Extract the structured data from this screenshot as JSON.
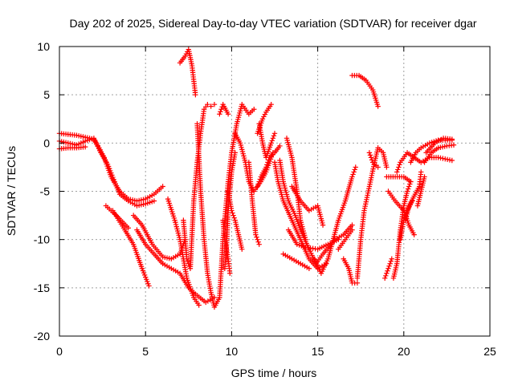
{
  "chart_data": {
    "type": "scatter",
    "title": "Day 202 of 2025, Sidereal Day-to-day VTEC variation (SDTVAR) for receiver dgar",
    "xlabel": "GPS time / hours",
    "ylabel": "SDTVAR / TECUs",
    "xlim": [
      0,
      25
    ],
    "ylim": [
      -20,
      10
    ],
    "xticks": [
      "0",
      "5",
      "10",
      "15",
      "20",
      "25"
    ],
    "yticks": [
      "10",
      "5",
      "0",
      "-5",
      "-10",
      "-15",
      "-20"
    ],
    "grid": true,
    "marker": "+",
    "color": "#ff0000",
    "series": [
      {
        "name": "track-1",
        "points": [
          [
            0,
            1
          ],
          [
            0.5,
            0.9
          ],
          [
            1,
            0.8
          ],
          [
            1.5,
            0.6
          ],
          [
            2,
            0.4
          ],
          [
            2.3,
            -0.5
          ],
          [
            2.6,
            -1.5
          ],
          [
            3,
            -3.5
          ],
          [
            3.5,
            -5
          ],
          [
            4,
            -5.8
          ],
          [
            4.5,
            -6
          ],
          [
            5,
            -5.8
          ],
          [
            5.5,
            -5.3
          ],
          [
            6,
            -4.5
          ]
        ]
      },
      {
        "name": "track-2",
        "points": [
          [
            0,
            0.2
          ],
          [
            0.5,
            0
          ],
          [
            1,
            -0.2
          ],
          [
            1.5,
            0.2
          ],
          [
            2,
            0.5
          ],
          [
            2.4,
            -1
          ],
          [
            2.8,
            -2.2
          ],
          [
            3.2,
            -4
          ],
          [
            3.5,
            -5.3
          ],
          [
            4,
            -6
          ],
          [
            4.5,
            -6.5
          ],
          [
            5,
            -6.3
          ],
          [
            5.5,
            -6
          ]
        ]
      },
      {
        "name": "track-3",
        "points": [
          [
            0,
            -0.6
          ],
          [
            0.5,
            -0.5
          ],
          [
            1,
            -0.5
          ],
          [
            1.5,
            -0.4
          ]
        ]
      },
      {
        "name": "track-4",
        "points": [
          [
            2.7,
            -6.5
          ],
          [
            3.3,
            -7.5
          ],
          [
            4,
            -8.8
          ]
        ]
      },
      {
        "name": "track-5",
        "points": [
          [
            3.1,
            -7
          ],
          [
            3.8,
            -9
          ],
          [
            4.3,
            -10.5
          ],
          [
            4.8,
            -13
          ],
          [
            5.2,
            -14.8
          ]
        ]
      },
      {
        "name": "track-6",
        "points": [
          [
            4.3,
            -7.5
          ],
          [
            4.8,
            -8.5
          ],
          [
            5.4,
            -10.5
          ],
          [
            6,
            -11.8
          ],
          [
            6.5,
            -12
          ],
          [
            7,
            -11.5
          ],
          [
            7.3,
            -10
          ]
        ]
      },
      {
        "name": "track-7",
        "points": [
          [
            4.5,
            -9
          ],
          [
            5,
            -10.5
          ],
          [
            5.5,
            -11.5
          ],
          [
            6,
            -12.5
          ],
          [
            6.5,
            -13
          ],
          [
            7,
            -13.5
          ],
          [
            7.5,
            -15
          ],
          [
            8,
            -15.8
          ],
          [
            8.5,
            -16.5
          ],
          [
            9,
            -16
          ]
        ]
      },
      {
        "name": "track-8",
        "points": [
          [
            6.3,
            -5.8
          ],
          [
            6.7,
            -8
          ],
          [
            7,
            -10
          ],
          [
            7.4,
            -14
          ],
          [
            7.8,
            -16
          ],
          [
            8.1,
            -16.8
          ]
        ]
      },
      {
        "name": "track-9",
        "points": [
          [
            7,
            8.3
          ],
          [
            7.3,
            9
          ],
          [
            7.5,
            9.7
          ],
          [
            7.7,
            8
          ],
          [
            7.9,
            5
          ]
        ]
      },
      {
        "name": "track-10",
        "points": [
          [
            7.2,
            -8
          ],
          [
            7.4,
            -12
          ],
          [
            7.6,
            -13
          ],
          [
            7.8,
            -6
          ],
          [
            8,
            -2
          ],
          [
            8.2,
            1
          ],
          [
            8.4,
            3.5
          ],
          [
            8.6,
            4
          ],
          [
            8.8,
            3.8
          ],
          [
            9,
            4
          ]
        ]
      },
      {
        "name": "track-11",
        "points": [
          [
            8,
            2
          ],
          [
            8.2,
            -5
          ],
          [
            8.4,
            -10
          ],
          [
            8.6,
            -13.5
          ],
          [
            8.8,
            -15.5
          ],
          [
            9,
            -17
          ],
          [
            9.3,
            -16
          ],
          [
            9.5,
            -10
          ],
          [
            9.8,
            -4
          ],
          [
            10,
            -1
          ],
          [
            10.3,
            2
          ],
          [
            10.6,
            4
          ],
          [
            11,
            3
          ],
          [
            11.3,
            3.5
          ]
        ]
      },
      {
        "name": "track-12",
        "points": [
          [
            9.3,
            3
          ],
          [
            9.5,
            4
          ],
          [
            9.8,
            3
          ]
        ]
      },
      {
        "name": "track-13",
        "points": [
          [
            9.6,
            -13
          ],
          [
            9.7,
            -11
          ],
          [
            9.8,
            -7
          ],
          [
            10,
            -3
          ],
          [
            10.2,
            -1
          ]
        ]
      },
      {
        "name": "track-14",
        "points": [
          [
            9.8,
            -5
          ],
          [
            10,
            -7
          ],
          [
            10.2,
            -8
          ],
          [
            10.4,
            -9.5
          ],
          [
            10.6,
            -11
          ]
        ]
      },
      {
        "name": "track-15",
        "points": [
          [
            9.5,
            -8
          ],
          [
            9.6,
            -10
          ],
          [
            9.8,
            -12
          ],
          [
            9.9,
            -13.5
          ]
        ]
      },
      {
        "name": "track-16",
        "points": [
          [
            10.2,
            1
          ],
          [
            10.5,
            0
          ],
          [
            10.8,
            -2
          ],
          [
            11,
            -4
          ],
          [
            11.3,
            -5
          ],
          [
            11.7,
            -4
          ],
          [
            12,
            -3
          ],
          [
            12.4,
            -1
          ]
        ]
      },
      {
        "name": "track-17",
        "points": [
          [
            11,
            -2
          ],
          [
            11.2,
            -6
          ],
          [
            11.4,
            -9.5
          ],
          [
            11.6,
            -10.5
          ]
        ]
      },
      {
        "name": "track-18",
        "points": [
          [
            11.5,
            1
          ],
          [
            11.8,
            2.5
          ],
          [
            12,
            3.2
          ],
          [
            12.3,
            4
          ]
        ]
      },
      {
        "name": "track-19",
        "points": [
          [
            11.5,
            -4.5
          ],
          [
            11.7,
            -3.5
          ],
          [
            12,
            -2.5
          ],
          [
            12.2,
            -1.5
          ],
          [
            12.5,
            -1
          ],
          [
            12.8,
            -0.3
          ]
        ]
      },
      {
        "name": "track-20",
        "points": [
          [
            11.6,
            2
          ],
          [
            11.8,
            0
          ],
          [
            12,
            -1.5
          ],
          [
            12.3,
            0
          ],
          [
            12.5,
            1
          ]
        ]
      },
      {
        "name": "track-21",
        "points": [
          [
            12.5,
            -2
          ],
          [
            12.7,
            -4
          ],
          [
            13,
            -6
          ],
          [
            13.5,
            -8
          ],
          [
            14,
            -10
          ],
          [
            14.5,
            -12
          ],
          [
            15,
            -13
          ],
          [
            15.5,
            -12.5
          ]
        ]
      },
      {
        "name": "track-22",
        "points": [
          [
            12.8,
            -1.8
          ],
          [
            13,
            -4
          ],
          [
            13.3,
            -6
          ],
          [
            13.7,
            -7.5
          ],
          [
            14,
            -9
          ],
          [
            14.5,
            -11
          ],
          [
            14.9,
            -12.5
          ],
          [
            15.3,
            -11.5
          ],
          [
            16,
            -10
          ],
          [
            16.5,
            -9.5
          ],
          [
            17,
            -8.5
          ]
        ]
      },
      {
        "name": "track-23",
        "points": [
          [
            13.2,
            0.5
          ],
          [
            13.5,
            -1.5
          ],
          [
            13.8,
            -5
          ],
          [
            14,
            -8
          ],
          [
            14.3,
            -10
          ]
        ]
      },
      {
        "name": "track-24",
        "points": [
          [
            13,
            -11.5
          ],
          [
            13.5,
            -12
          ],
          [
            14,
            -12.5
          ],
          [
            14.5,
            -13
          ]
        ]
      },
      {
        "name": "track-25",
        "points": [
          [
            13.5,
            -4.5
          ],
          [
            14,
            -6
          ],
          [
            14.5,
            -7
          ],
          [
            15,
            -6.5
          ],
          [
            15.3,
            -8.5
          ]
        ]
      },
      {
        "name": "track-26",
        "points": [
          [
            13.3,
            -9
          ],
          [
            13.8,
            -10.5
          ],
          [
            14.3,
            -10.8
          ],
          [
            15,
            -11
          ],
          [
            15.6,
            -10.5
          ],
          [
            16.2,
            -10
          ]
        ]
      },
      {
        "name": "track-27",
        "points": [
          [
            14.8,
            -12
          ],
          [
            15.2,
            -13.5
          ],
          [
            15.6,
            -12
          ],
          [
            16.2,
            -8
          ],
          [
            16.6,
            -6
          ],
          [
            17,
            -3.5
          ],
          [
            17.2,
            -2.5
          ]
        ]
      },
      {
        "name": "track-28",
        "points": [
          [
            16.2,
            -11
          ],
          [
            16.6,
            -10
          ],
          [
            17,
            -9
          ]
        ]
      },
      {
        "name": "track-29",
        "points": [
          [
            16.5,
            -12
          ],
          [
            16.8,
            -13
          ],
          [
            17,
            -14.5
          ],
          [
            17.3,
            -14.5
          ]
        ]
      },
      {
        "name": "track-30",
        "points": [
          [
            17.3,
            -14
          ],
          [
            17.5,
            -10
          ],
          [
            17.7,
            -7
          ],
          [
            18,
            -4.5
          ],
          [
            18.3,
            -2
          ],
          [
            18.5,
            -0.5
          ],
          [
            18.8,
            -1
          ],
          [
            19,
            -2.5
          ]
        ]
      },
      {
        "name": "track-31",
        "points": [
          [
            17,
            7
          ],
          [
            17.4,
            7
          ],
          [
            17.8,
            6.5
          ],
          [
            18.2,
            5.5
          ],
          [
            18.5,
            3.8
          ]
        ]
      },
      {
        "name": "track-32",
        "points": [
          [
            18,
            -1
          ],
          [
            18.2,
            -2
          ],
          [
            18.5,
            -2.5
          ]
        ]
      },
      {
        "name": "track-33",
        "points": [
          [
            18.9,
            -14
          ],
          [
            19.1,
            -13
          ],
          [
            19.3,
            -12
          ]
        ]
      },
      {
        "name": "track-34",
        "points": [
          [
            19.4,
            -14
          ],
          [
            19.6,
            -12.5
          ],
          [
            19.8,
            -9
          ],
          [
            20,
            -6.5
          ],
          [
            20.2,
            -5
          ],
          [
            20.4,
            -4
          ]
        ]
      },
      {
        "name": "track-35",
        "points": [
          [
            19.6,
            -3
          ],
          [
            19.8,
            -2
          ],
          [
            20.2,
            -1
          ],
          [
            20.6,
            -1.5
          ],
          [
            21,
            -2
          ],
          [
            21.5,
            -1.5
          ],
          [
            22,
            -1.5
          ],
          [
            22.8,
            -1.8
          ]
        ]
      },
      {
        "name": "track-36",
        "points": [
          [
            19.1,
            -5
          ],
          [
            19.5,
            -6
          ],
          [
            20,
            -7
          ],
          [
            20.3,
            -8.5
          ],
          [
            20.6,
            -9.5
          ]
        ]
      },
      {
        "name": "track-37",
        "points": [
          [
            19,
            -3.5
          ],
          [
            19.5,
            -3.5
          ],
          [
            20,
            -3.5
          ],
          [
            20.4,
            -4
          ]
        ]
      },
      {
        "name": "track-38",
        "points": [
          [
            20.1,
            -8
          ],
          [
            20.3,
            -6.5
          ],
          [
            20.6,
            -5.5
          ],
          [
            20.9,
            -4.5
          ],
          [
            21,
            -3
          ]
        ]
      },
      {
        "name": "track-39",
        "points": [
          [
            20.4,
            -2
          ],
          [
            20.7,
            -1
          ],
          [
            21,
            -0.5
          ],
          [
            21.5,
            0
          ],
          [
            22,
            0.3
          ],
          [
            22.8,
            0.3
          ]
        ]
      },
      {
        "name": "track-40",
        "points": [
          [
            19.8,
            -10
          ],
          [
            20,
            -8
          ],
          [
            20.2,
            -7
          ],
          [
            20.5,
            -6
          ]
        ]
      },
      {
        "name": "track-41",
        "points": [
          [
            20.8,
            -6.5
          ],
          [
            21,
            -5
          ],
          [
            21.2,
            -3.5
          ]
        ]
      },
      {
        "name": "track-42",
        "points": [
          [
            21.3,
            -1
          ],
          [
            21.8,
            0
          ],
          [
            22.3,
            0.5
          ],
          [
            22.8,
            0.4
          ]
        ]
      },
      {
        "name": "track-43",
        "points": [
          [
            21.2,
            -2
          ],
          [
            21.6,
            -1
          ],
          [
            22,
            -0.5
          ],
          [
            22.5,
            -0.3
          ],
          [
            22.9,
            -0.2
          ]
        ]
      }
    ]
  }
}
